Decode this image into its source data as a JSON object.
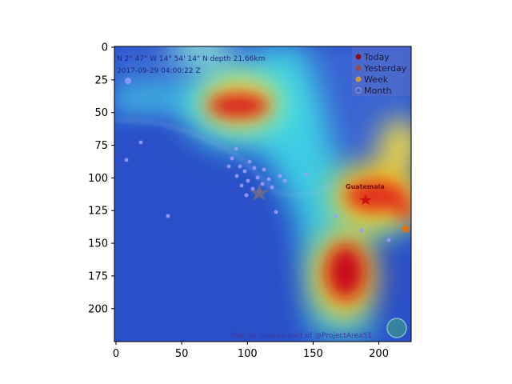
{
  "image": {
    "x_ticks": [
      "0",
      "50",
      "100",
      "150",
      "200"
    ],
    "y_ticks": [
      "0",
      "25",
      "50",
      "75",
      "100",
      "125",
      "150",
      "175",
      "200"
    ],
    "x_tick_values": [
      0,
      50,
      100,
      150,
      200
    ],
    "y_tick_values": [
      0,
      25,
      50,
      75,
      100,
      125,
      150,
      175,
      200
    ],
    "pixel_range": [
      0,
      224
    ],
    "overlay_lines": [
      "N 2° 47\" W 14° 54' 14\" N depth 21.66km",
      "2017-09-29 04:00:22 Z"
    ],
    "legend": [
      "Today",
      "Yesterday",
      "Week",
      "Month"
    ],
    "legend_colors": [
      "#8b0f1e",
      "#9a4a4a",
      "#c99a40",
      "#7f88d0"
    ],
    "place_label": "Guatemala",
    "credit": "Map by map.ku part of @ProjectArea51",
    "colors": {
      "ocean": "#2a4fc8",
      "heat_hot": "#d21a10",
      "heat_warm": "#ffd21a",
      "heat_cool": "#3fd6e6"
    }
  }
}
